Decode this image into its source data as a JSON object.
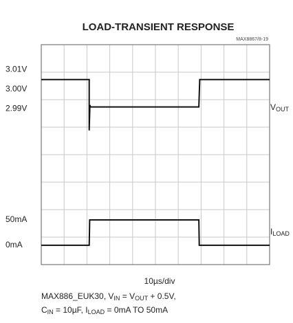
{
  "chart_data": {
    "type": "scope",
    "title": "LOAD-TRANSIENT RESPONSE",
    "figure_id": "MAX8867/8-19",
    "x_label": "10µs/div",
    "xlim": [
      0,
      100
    ],
    "grid": {
      "x_divisions": 10,
      "y_divisions": 8
    },
    "ylim": [
      2.9105,
      3.0228
    ],
    "yticks": [
      {
        "value": 3.01,
        "label": "3.01V"
      },
      {
        "value": 3.0,
        "label": "3.00V"
      },
      {
        "value": 2.99,
        "label": "2.99V"
      }
    ],
    "y2lim": [
      -38,
      395
    ],
    "y2ticks": [
      {
        "value": 50,
        "label": "50mA"
      },
      {
        "value": 0,
        "label": "0mA"
      }
    ],
    "series": [
      {
        "name": "VOUT",
        "color": "#111111",
        "x": [
          0,
          21,
          21,
          21.3,
          21.6,
          69,
          69.4,
          100
        ],
        "values": [
          3.005,
          3.005,
          2.979,
          2.992,
          2.991,
          2.991,
          3.005,
          3.005
        ]
      },
      {
        "name": "ILOAD",
        "color": "#111111",
        "axis": "y2",
        "x": [
          0,
          21,
          21.2,
          69,
          69.2,
          100
        ],
        "values": [
          0,
          0,
          50,
          50,
          0,
          0
        ]
      }
    ],
    "caption": [
      [
        {
          "text": "MAX886_EUK30, V"
        },
        {
          "text": "IN",
          "sub": true
        },
        {
          "text": " = V"
        },
        {
          "text": "OUT",
          "sub": true
        },
        {
          "text": " + 0.5V,"
        }
      ],
      [
        {
          "text": "C"
        },
        {
          "text": "IN",
          "sub": true
        },
        {
          "text": " = 10µF, I"
        },
        {
          "text": "LOAD",
          "sub": true
        },
        {
          "text": " = 0mA TO 50mA"
        }
      ]
    ]
  }
}
